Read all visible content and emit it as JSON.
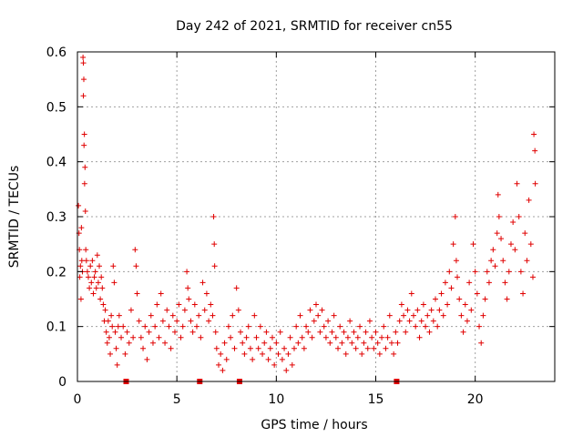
{
  "chart_data": {
    "type": "scatter",
    "title": "Day 242 of 2021, SRMTID for receiver cn55",
    "xlabel": "GPS time / hours",
    "ylabel": "SRMTID / TECUs",
    "xlim": [
      0,
      24
    ],
    "ylim": [
      0,
      0.6
    ],
    "x_ticks": [
      0,
      5,
      10,
      15,
      20
    ],
    "x_tick_labels": [
      "0",
      "5",
      "10",
      "15",
      "20"
    ],
    "y_ticks": [
      0,
      0.1,
      0.2,
      0.3,
      0.4,
      0.5,
      0.6
    ],
    "y_tick_labels": [
      "0",
      "0.1",
      "0.2",
      "0.3",
      "0.4",
      "0.5",
      "0.6"
    ],
    "grid": true,
    "marker": "+",
    "color": "#e00000",
    "series": [
      {
        "name": "SRMTID",
        "points": [
          [
            0.05,
            0.32
          ],
          [
            0.08,
            0.27
          ],
          [
            0.1,
            0.24
          ],
          [
            0.12,
            0.19
          ],
          [
            0.15,
            0.21
          ],
          [
            0.18,
            0.15
          ],
          [
            0.2,
            0.28
          ],
          [
            0.22,
            0.22
          ],
          [
            0.25,
            0.2
          ],
          [
            0.28,
            0.59
          ],
          [
            0.3,
            0.58
          ],
          [
            0.32,
            0.55
          ],
          [
            0.3,
            0.52
          ],
          [
            0.35,
            0.45
          ],
          [
            0.33,
            0.43
          ],
          [
            0.38,
            0.39
          ],
          [
            0.36,
            0.36
          ],
          [
            0.4,
            0.31
          ],
          [
            0.42,
            0.24
          ],
          [
            0.45,
            0.22
          ],
          [
            0.5,
            0.2
          ],
          [
            0.55,
            0.19
          ],
          [
            0.6,
            0.17
          ],
          [
            0.65,
            0.21
          ],
          [
            0.7,
            0.18
          ],
          [
            0.75,
            0.22
          ],
          [
            0.8,
            0.16
          ],
          [
            0.85,
            0.19
          ],
          [
            0.9,
            0.2
          ],
          [
            0.95,
            0.17
          ],
          [
            1.0,
            0.23
          ],
          [
            1.05,
            0.18
          ],
          [
            1.1,
            0.21
          ],
          [
            1.15,
            0.15
          ],
          [
            1.2,
            0.19
          ],
          [
            1.25,
            0.17
          ],
          [
            1.3,
            0.14
          ],
          [
            1.35,
            0.11
          ],
          [
            1.4,
            0.13
          ],
          [
            1.45,
            0.09
          ],
          [
            1.5,
            0.07
          ],
          [
            1.55,
            0.11
          ],
          [
            1.6,
            0.08
          ],
          [
            1.65,
            0.05
          ],
          [
            1.7,
            0.12
          ],
          [
            1.75,
            0.1
          ],
          [
            1.8,
            0.21
          ],
          [
            1.85,
            0.18
          ],
          [
            1.9,
            0.09
          ],
          [
            1.95,
            0.06
          ],
          [
            2.0,
            0.03
          ],
          [
            2.05,
            0.1
          ],
          [
            2.1,
            0.12
          ],
          [
            2.2,
            0.08
          ],
          [
            2.3,
            0.1
          ],
          [
            2.4,
            0.05
          ],
          [
            2.5,
            0.09
          ],
          [
            2.6,
            0.07
          ],
          [
            2.7,
            0.13
          ],
          [
            2.8,
            0.08
          ],
          [
            2.9,
            0.24
          ],
          [
            2.95,
            0.21
          ],
          [
            3.0,
            0.16
          ],
          [
            3.1,
            0.11
          ],
          [
            3.2,
            0.08
          ],
          [
            3.3,
            0.06
          ],
          [
            3.4,
            0.1
          ],
          [
            3.5,
            0.04
          ],
          [
            3.6,
            0.09
          ],
          [
            3.7,
            0.12
          ],
          [
            3.8,
            0.07
          ],
          [
            3.9,
            0.1
          ],
          [
            4.0,
            0.14
          ],
          [
            4.1,
            0.08
          ],
          [
            4.2,
            0.16
          ],
          [
            4.3,
            0.11
          ],
          [
            4.4,
            0.07
          ],
          [
            4.5,
            0.13
          ],
          [
            4.6,
            0.1
          ],
          [
            4.7,
            0.06
          ],
          [
            4.8,
            0.12
          ],
          [
            4.9,
            0.09
          ],
          [
            5.0,
            0.11
          ],
          [
            5.1,
            0.14
          ],
          [
            5.2,
            0.08
          ],
          [
            5.3,
            0.1
          ],
          [
            5.4,
            0.13
          ],
          [
            5.5,
            0.2
          ],
          [
            5.55,
            0.17
          ],
          [
            5.6,
            0.15
          ],
          [
            5.7,
            0.11
          ],
          [
            5.8,
            0.09
          ],
          [
            5.9,
            0.14
          ],
          [
            6.0,
            0.1
          ],
          [
            6.1,
            0.12
          ],
          [
            6.2,
            0.08
          ],
          [
            6.3,
            0.18
          ],
          [
            6.4,
            0.13
          ],
          [
            6.5,
            0.16
          ],
          [
            6.6,
            0.11
          ],
          [
            6.7,
            0.14
          ],
          [
            6.8,
            0.12
          ],
          [
            6.85,
            0.3
          ],
          [
            6.88,
            0.25
          ],
          [
            6.9,
            0.21
          ],
          [
            6.95,
            0.09
          ],
          [
            7.0,
            0.06
          ],
          [
            7.1,
            0.03
          ],
          [
            7.2,
            0.05
          ],
          [
            7.3,
            0.02
          ],
          [
            7.4,
            0.07
          ],
          [
            7.5,
            0.04
          ],
          [
            7.6,
            0.1
          ],
          [
            7.7,
            0.08
          ],
          [
            7.8,
            0.12
          ],
          [
            7.9,
            0.06
          ],
          [
            8.0,
            0.17
          ],
          [
            8.1,
            0.13
          ],
          [
            8.2,
            0.09
          ],
          [
            8.3,
            0.07
          ],
          [
            8.4,
            0.05
          ],
          [
            8.5,
            0.08
          ],
          [
            8.6,
            0.1
          ],
          [
            8.7,
            0.06
          ],
          [
            8.8,
            0.04
          ],
          [
            8.9,
            0.12
          ],
          [
            9.0,
            0.08
          ],
          [
            9.1,
            0.06
          ],
          [
            9.2,
            0.1
          ],
          [
            9.3,
            0.05
          ],
          [
            9.4,
            0.07
          ],
          [
            9.5,
            0.09
          ],
          [
            9.6,
            0.04
          ],
          [
            9.7,
            0.06
          ],
          [
            9.8,
            0.08
          ],
          [
            9.9,
            0.03
          ],
          [
            10.0,
            0.07
          ],
          [
            10.1,
            0.05
          ],
          [
            10.2,
            0.09
          ],
          [
            10.3,
            0.04
          ],
          [
            10.4,
            0.06
          ],
          [
            10.5,
            0.02
          ],
          [
            10.6,
            0.05
          ],
          [
            10.7,
            0.08
          ],
          [
            10.8,
            0.03
          ],
          [
            10.9,
            0.06
          ],
          [
            11.0,
            0.1
          ],
          [
            11.1,
            0.07
          ],
          [
            11.2,
            0.12
          ],
          [
            11.3,
            0.08
          ],
          [
            11.4,
            0.06
          ],
          [
            11.5,
            0.1
          ],
          [
            11.6,
            0.09
          ],
          [
            11.7,
            0.13
          ],
          [
            11.8,
            0.08
          ],
          [
            11.9,
            0.11
          ],
          [
            12.0,
            0.14
          ],
          [
            12.1,
            0.12
          ],
          [
            12.2,
            0.09
          ],
          [
            12.3,
            0.13
          ],
          [
            12.4,
            0.1
          ],
          [
            12.5,
            0.08
          ],
          [
            12.6,
            0.11
          ],
          [
            12.7,
            0.07
          ],
          [
            12.8,
            0.09
          ],
          [
            12.9,
            0.12
          ],
          [
            13.0,
            0.08
          ],
          [
            13.1,
            0.06
          ],
          [
            13.2,
            0.1
          ],
          [
            13.3,
            0.07
          ],
          [
            13.4,
            0.09
          ],
          [
            13.5,
            0.05
          ],
          [
            13.6,
            0.08
          ],
          [
            13.7,
            0.11
          ],
          [
            13.8,
            0.07
          ],
          [
            13.9,
            0.09
          ],
          [
            14.0,
            0.06
          ],
          [
            14.1,
            0.08
          ],
          [
            14.2,
            0.1
          ],
          [
            14.3,
            0.05
          ],
          [
            14.4,
            0.07
          ],
          [
            14.5,
            0.09
          ],
          [
            14.6,
            0.06
          ],
          [
            14.7,
            0.11
          ],
          [
            14.8,
            0.08
          ],
          [
            14.9,
            0.06
          ],
          [
            15.0,
            0.09
          ],
          [
            15.1,
            0.07
          ],
          [
            15.2,
            0.05
          ],
          [
            15.3,
            0.08
          ],
          [
            15.4,
            0.1
          ],
          [
            15.5,
            0.06
          ],
          [
            15.6,
            0.08
          ],
          [
            15.7,
            0.12
          ],
          [
            15.8,
            0.07
          ],
          [
            15.9,
            0.05
          ],
          [
            16.0,
            0.09
          ],
          [
            16.1,
            0.07
          ],
          [
            16.2,
            0.11
          ],
          [
            16.3,
            0.14
          ],
          [
            16.4,
            0.12
          ],
          [
            16.5,
            0.09
          ],
          [
            16.6,
            0.13
          ],
          [
            16.7,
            0.11
          ],
          [
            16.8,
            0.16
          ],
          [
            16.9,
            0.12
          ],
          [
            17.0,
            0.1
          ],
          [
            17.1,
            0.13
          ],
          [
            17.2,
            0.08
          ],
          [
            17.3,
            0.11
          ],
          [
            17.4,
            0.14
          ],
          [
            17.5,
            0.1
          ],
          [
            17.6,
            0.12
          ],
          [
            17.7,
            0.09
          ],
          [
            17.8,
            0.13
          ],
          [
            17.9,
            0.11
          ],
          [
            18.0,
            0.15
          ],
          [
            18.1,
            0.1
          ],
          [
            18.2,
            0.13
          ],
          [
            18.3,
            0.16
          ],
          [
            18.4,
            0.12
          ],
          [
            18.5,
            0.18
          ],
          [
            18.6,
            0.14
          ],
          [
            18.7,
            0.2
          ],
          [
            18.8,
            0.17
          ],
          [
            18.9,
            0.25
          ],
          [
            19.0,
            0.3
          ],
          [
            19.05,
            0.22
          ],
          [
            19.1,
            0.19
          ],
          [
            19.2,
            0.15
          ],
          [
            19.3,
            0.12
          ],
          [
            19.4,
            0.09
          ],
          [
            19.5,
            0.14
          ],
          [
            19.6,
            0.11
          ],
          [
            19.7,
            0.18
          ],
          [
            19.8,
            0.13
          ],
          [
            19.9,
            0.25
          ],
          [
            20.0,
            0.2
          ],
          [
            20.1,
            0.16
          ],
          [
            20.2,
            0.1
          ],
          [
            20.3,
            0.07
          ],
          [
            20.4,
            0.12
          ],
          [
            20.5,
            0.15
          ],
          [
            20.6,
            0.2
          ],
          [
            20.7,
            0.18
          ],
          [
            20.8,
            0.22
          ],
          [
            20.9,
            0.24
          ],
          [
            21.0,
            0.21
          ],
          [
            21.1,
            0.27
          ],
          [
            21.15,
            0.34
          ],
          [
            21.2,
            0.3
          ],
          [
            21.3,
            0.26
          ],
          [
            21.4,
            0.22
          ],
          [
            21.5,
            0.18
          ],
          [
            21.6,
            0.15
          ],
          [
            21.7,
            0.2
          ],
          [
            21.8,
            0.25
          ],
          [
            21.9,
            0.29
          ],
          [
            22.0,
            0.24
          ],
          [
            22.1,
            0.36
          ],
          [
            22.2,
            0.3
          ],
          [
            22.3,
            0.2
          ],
          [
            22.4,
            0.16
          ],
          [
            22.5,
            0.27
          ],
          [
            22.6,
            0.22
          ],
          [
            22.7,
            0.33
          ],
          [
            22.8,
            0.25
          ],
          [
            22.9,
            0.19
          ],
          [
            22.95,
            0.45
          ],
          [
            23.0,
            0.42
          ],
          [
            23.02,
            0.36
          ]
        ]
      }
    ],
    "data_gap_markers_x": [
      2.45,
      6.15,
      8.15,
      16.05
    ]
  }
}
